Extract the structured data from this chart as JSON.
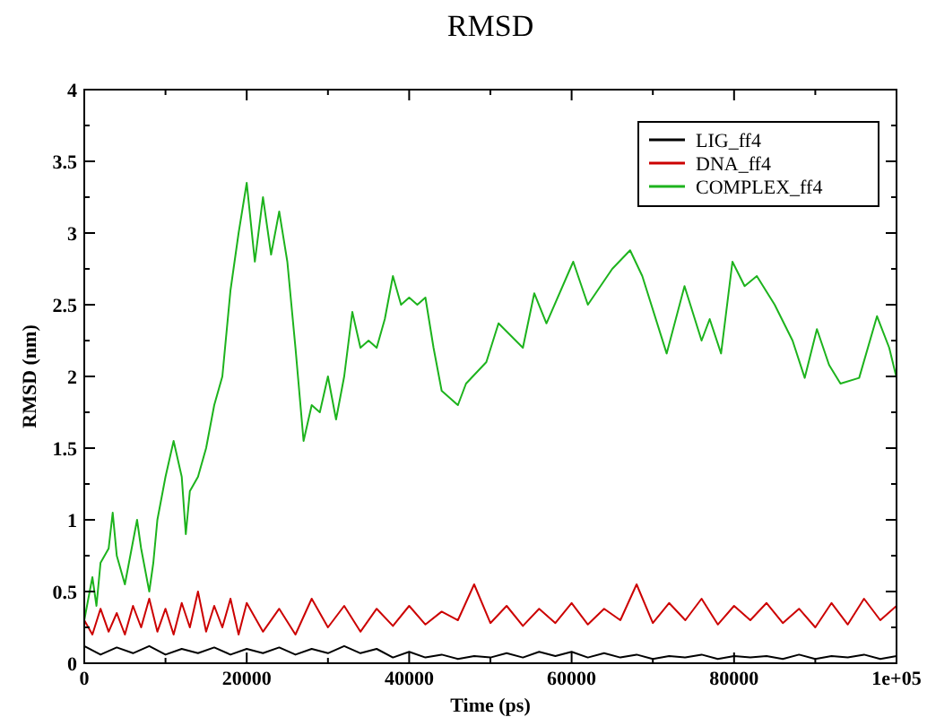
{
  "chart_data": {
    "type": "line",
    "title": "RMSD",
    "xlabel": "Time (ps)",
    "ylabel": "RMSD (nm)",
    "xlim": [
      0,
      100000
    ],
    "ylim": [
      0,
      4
    ],
    "xticks": [
      0,
      {
        "value": 10000,
        "label": null
      },
      20000,
      {
        "value": 30000,
        "label": null
      },
      40000,
      {
        "value": 50000,
        "label": null
      },
      60000,
      {
        "value": 70000,
        "label": null
      },
      80000,
      {
        "value": 90000,
        "label": null
      },
      {
        "value": 100000,
        "label": "1e+05"
      }
    ],
    "yticks": [
      0,
      {
        "value": 0.25,
        "label": null
      },
      0.5,
      {
        "value": 0.75,
        "label": null
      },
      1,
      {
        "value": 1.25,
        "label": null
      },
      1.5,
      {
        "value": 1.75,
        "label": null
      },
      2,
      {
        "value": 2.25,
        "label": null
      },
      2.5,
      {
        "value": 2.75,
        "label": null
      },
      3,
      {
        "value": 3.25,
        "label": null
      },
      3.5,
      {
        "value": 3.75,
        "label": null
      },
      4
    ],
    "legend": "top right",
    "grid": false,
    "marker": "none",
    "line_style": "solid",
    "series": [
      {
        "name": "LIG_ff4",
        "color": "#000000",
        "x": [
          0,
          2000,
          4000,
          6000,
          8000,
          10000,
          12000,
          14000,
          16000,
          18000,
          20000,
          22000,
          24000,
          26000,
          28000,
          30000,
          32000,
          34000,
          36000,
          38000,
          40000,
          42000,
          44000,
          46000,
          48000,
          50000,
          52000,
          54000,
          56000,
          58000,
          60000,
          62000,
          64000,
          66000,
          68000,
          70000,
          72000,
          74000,
          76000,
          78000,
          80000,
          82000,
          84000,
          86000,
          88000,
          90000,
          92000,
          94000,
          96000,
          98000,
          100000
        ],
        "values": [
          0.12,
          0.06,
          0.11,
          0.07,
          0.12,
          0.06,
          0.1,
          0.07,
          0.11,
          0.06,
          0.1,
          0.07,
          0.11,
          0.06,
          0.1,
          0.07,
          0.12,
          0.07,
          0.1,
          0.04,
          0.08,
          0.04,
          0.06,
          0.03,
          0.05,
          0.04,
          0.07,
          0.04,
          0.08,
          0.05,
          0.08,
          0.04,
          0.07,
          0.04,
          0.06,
          0.03,
          0.05,
          0.04,
          0.06,
          0.03,
          0.05,
          0.04,
          0.05,
          0.03,
          0.06,
          0.03,
          0.05,
          0.04,
          0.06,
          0.03,
          0.05
        ]
      },
      {
        "name": "DNA_ff4",
        "color": "#cc0000",
        "x": [
          0,
          1000,
          2000,
          3000,
          4000,
          5000,
          6000,
          7000,
          8000,
          9000,
          10000,
          11000,
          12000,
          13000,
          14000,
          15000,
          16000,
          17000,
          18000,
          19000,
          20000,
          22000,
          24000,
          26000,
          28000,
          30000,
          32000,
          34000,
          36000,
          38000,
          40000,
          42000,
          44000,
          46000,
          48000,
          50000,
          52000,
          54000,
          56000,
          58000,
          60000,
          62000,
          64000,
          66000,
          68000,
          70000,
          72000,
          74000,
          76000,
          78000,
          80000,
          82000,
          84000,
          86000,
          88000,
          90000,
          92000,
          94000,
          96000,
          98000,
          100000
        ],
        "values": [
          0.3,
          0.2,
          0.38,
          0.22,
          0.35,
          0.2,
          0.4,
          0.25,
          0.45,
          0.22,
          0.38,
          0.2,
          0.42,
          0.25,
          0.5,
          0.22,
          0.4,
          0.25,
          0.45,
          0.2,
          0.42,
          0.22,
          0.38,
          0.2,
          0.45,
          0.25,
          0.4,
          0.22,
          0.38,
          0.26,
          0.4,
          0.27,
          0.36,
          0.3,
          0.55,
          0.28,
          0.4,
          0.26,
          0.38,
          0.28,
          0.42,
          0.27,
          0.38,
          0.3,
          0.55,
          0.28,
          0.42,
          0.3,
          0.45,
          0.27,
          0.4,
          0.3,
          0.42,
          0.28,
          0.38,
          0.25,
          0.42,
          0.27,
          0.45,
          0.3,
          0.4
        ]
      },
      {
        "name": "COMPLEX_ff4",
        "color": "#1db31d",
        "x": [
          0,
          500,
          1000,
          1500,
          2000,
          3000,
          3500,
          4000,
          5000,
          6000,
          6500,
          7000,
          8000,
          8500,
          9000,
          10000,
          11000,
          12000,
          12500,
          13000,
          14000,
          15000,
          16000,
          17000,
          18000,
          19000,
          20000,
          21000,
          22000,
          23000,
          24000,
          25000,
          26000,
          27000,
          28000,
          29000,
          30000,
          31000,
          32000,
          33000,
          34000,
          35000,
          36000,
          37000,
          38000,
          39000,
          40000,
          41000,
          42000,
          43000,
          44000,
          45000,
          46000,
          47000,
          49500,
          51000,
          54000,
          55400,
          56900,
          60200,
          62000,
          65000,
          67200,
          68700,
          71700,
          73900,
          76000,
          77000,
          78400,
          79800,
          81300,
          82800,
          85000,
          87200,
          88700,
          90200,
          91700,
          93100,
          95400,
          97600,
          99100,
          100000
        ],
        "values": [
          0.3,
          0.45,
          0.6,
          0.4,
          0.7,
          0.8,
          1.05,
          0.75,
          0.55,
          0.85,
          1.0,
          0.8,
          0.5,
          0.7,
          1.0,
          1.3,
          1.55,
          1.3,
          0.9,
          1.2,
          1.3,
          1.5,
          1.8,
          2.0,
          2.6,
          3.0,
          3.35,
          2.8,
          3.25,
          2.85,
          3.15,
          2.8,
          2.2,
          1.55,
          1.8,
          1.75,
          2.0,
          1.7,
          2.0,
          2.45,
          2.2,
          2.25,
          2.2,
          2.4,
          2.7,
          2.5,
          2.55,
          2.5,
          2.55,
          2.2,
          1.9,
          1.85,
          1.8,
          1.95,
          2.1,
          2.37,
          2.2,
          2.58,
          2.37,
          2.8,
          2.5,
          2.75,
          2.88,
          2.7,
          2.16,
          2.63,
          2.25,
          2.4,
          2.16,
          2.8,
          2.63,
          2.7,
          2.5,
          2.25,
          1.99,
          2.33,
          2.08,
          1.95,
          1.99,
          2.42,
          2.2,
          1.99
        ]
      }
    ]
  }
}
